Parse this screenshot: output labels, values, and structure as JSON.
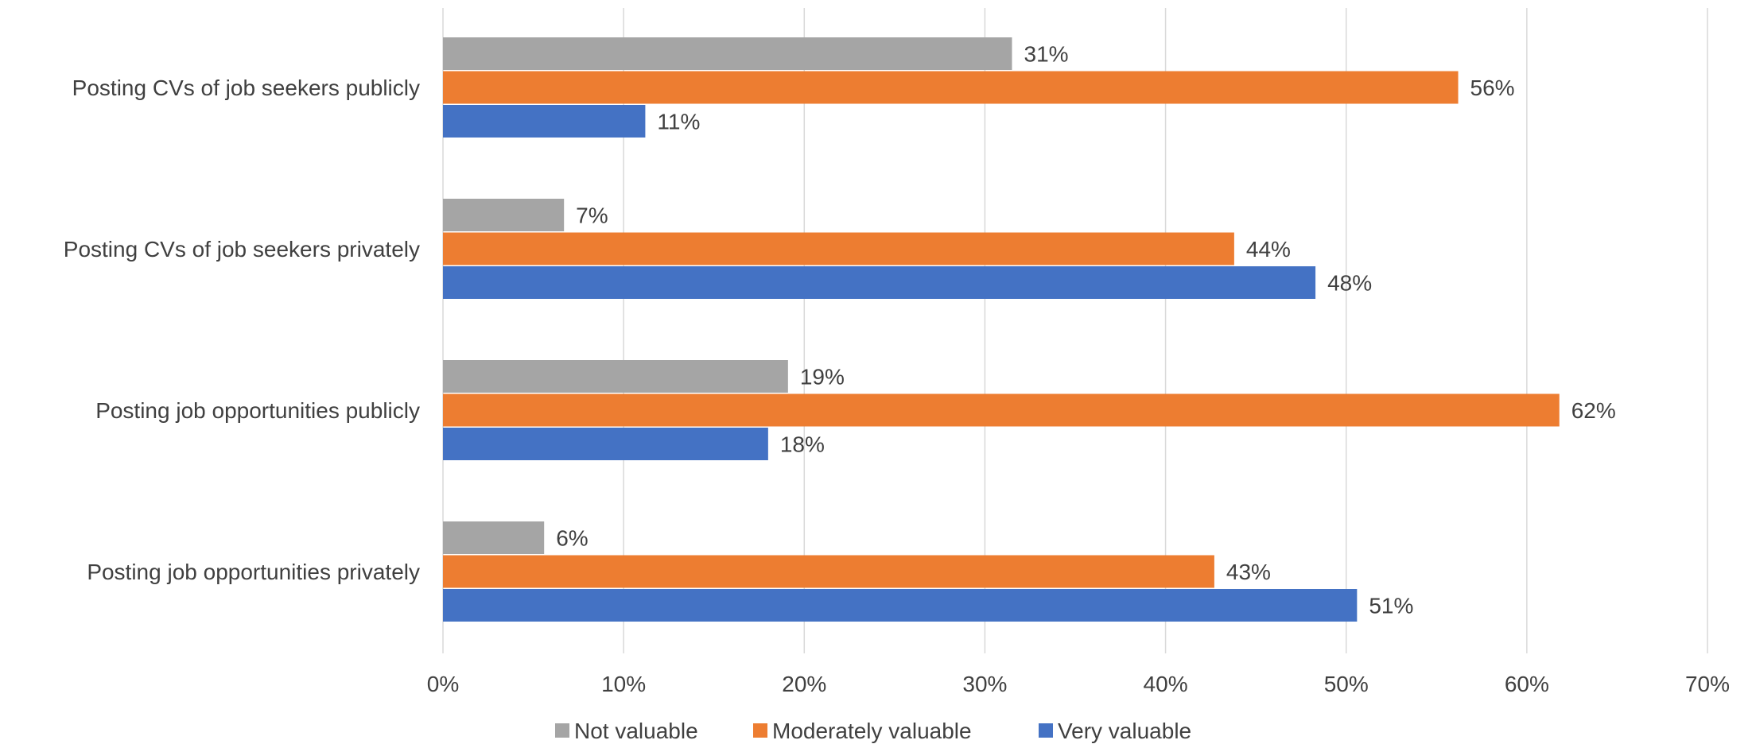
{
  "chart_data": {
    "type": "bar",
    "orientation": "horizontal",
    "categories": [
      "Posting CVs of job seekers publicly",
      "Posting CVs of job seekers privately",
      "Posting job opportunities publicly",
      "Posting job opportunities privately"
    ],
    "series": [
      {
        "name": "Not valuable",
        "color": "#a5a5a5",
        "values": [
          31.5,
          6.7,
          19.1,
          5.6
        ],
        "labels": [
          "31%",
          "7%",
          "19%",
          "6%"
        ]
      },
      {
        "name": "Moderately valuable",
        "color": "#ed7d31",
        "values": [
          56.2,
          43.8,
          61.8,
          42.7
        ],
        "labels": [
          "56%",
          "44%",
          "62%",
          "43%"
        ]
      },
      {
        "name": "Very valuable",
        "color": "#4472c4",
        "values": [
          11.2,
          48.3,
          18.0,
          50.6
        ],
        "labels": [
          "11%",
          "48%",
          "18%",
          "51%"
        ]
      }
    ],
    "xlim": [
      0,
      70
    ],
    "xticks": [
      0,
      10,
      20,
      30,
      40,
      50,
      60,
      70
    ],
    "xtick_labels": [
      "0%",
      "10%",
      "20%",
      "30%",
      "40%",
      "50%",
      "60%",
      "70%"
    ],
    "grid": true,
    "legend_position": "bottom",
    "title": "",
    "xlabel": "",
    "ylabel": ""
  }
}
